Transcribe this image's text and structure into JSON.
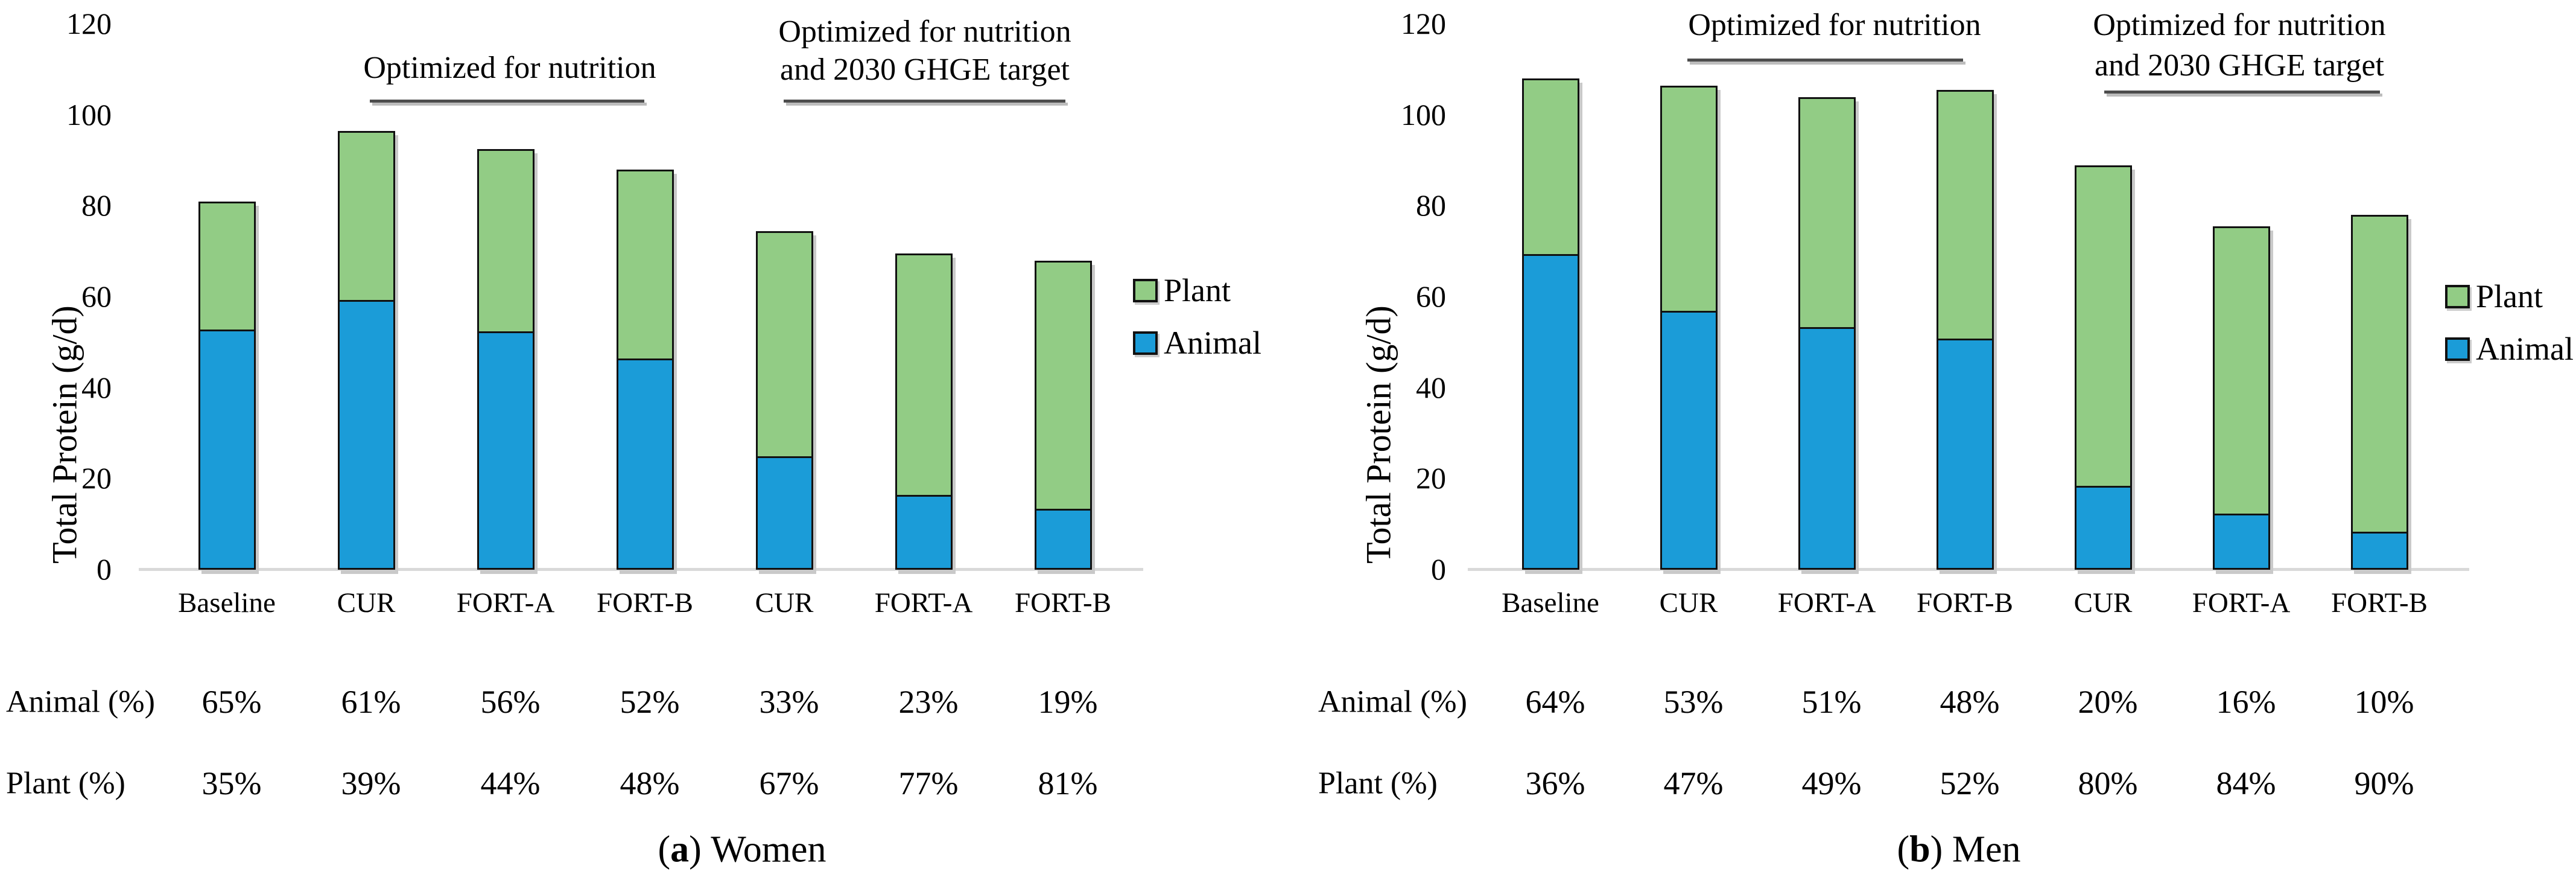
{
  "y_axis": {
    "label": "Total Protein (g/d)",
    "ticks": [
      0,
      20,
      40,
      60,
      80,
      100,
      120
    ],
    "max": 120
  },
  "legend": {
    "plant": "Plant",
    "animal": "Animal"
  },
  "annotations": {
    "nutrition": "Optimized for nutrition",
    "ghge_line1": "Optimized for nutrition",
    "ghge_line2": "and 2030 GHGE target"
  },
  "table": {
    "animal_label": "Animal (%)",
    "plant_label": "Plant (%)"
  },
  "colors": {
    "animal": "#1B9CD8",
    "plant": "#92CC85",
    "bar_border": "#111111",
    "axis_line": "#D9D9D9",
    "annotation_underline": "#4D4D4D"
  },
  "chart_data": [
    {
      "type": "bar",
      "stacked": true,
      "caption": {
        "pre": "(",
        "letter": "a",
        "post": ")",
        "word": "Women"
      },
      "ylabel": "Total Protein (g/d)",
      "ylim": [
        0,
        120
      ],
      "categories": [
        "Baseline",
        "CUR",
        "FORT-A",
        "FORT-B",
        "CUR",
        "FORT-A",
        "FORT-B"
      ],
      "series": [
        {
          "name": "Animal",
          "values": [
            52.5,
            59,
            52,
            46,
            24.5,
            16,
            13
          ]
        },
        {
          "name": "Plant",
          "values": [
            28.5,
            37.5,
            40.5,
            42,
            50,
            53.5,
            55
          ]
        }
      ],
      "totals": [
        81,
        96.5,
        92.5,
        88,
        74.5,
        69.5,
        68
      ],
      "animal_pct": [
        "65%",
        "61%",
        "56%",
        "52%",
        "33%",
        "23%",
        "19%"
      ],
      "plant_pct": [
        "35%",
        "39%",
        "44%",
        "48%",
        "67%",
        "77%",
        "81%"
      ],
      "group_annotations": [
        {
          "text": "Optimized for nutrition",
          "bars": "CUR, FORT-A, FORT-B"
        },
        {
          "text": "Optimized for nutrition and 2030 GHGE target",
          "bars": "CUR, FORT-A, FORT-B"
        }
      ]
    },
    {
      "type": "bar",
      "stacked": true,
      "caption": {
        "pre": "(",
        "letter": "b",
        "post": ")",
        "word": "Men"
      },
      "ylabel": "Total Protein (g/d)",
      "ylim": [
        0,
        120
      ],
      "categories": [
        "Baseline",
        "CUR",
        "FORT-A",
        "FORT-B",
        "CUR",
        "FORT-A",
        "FORT-B"
      ],
      "series": [
        {
          "name": "Animal",
          "values": [
            69,
            56.5,
            53,
            50.5,
            18,
            12,
            8
          ]
        },
        {
          "name": "Plant",
          "values": [
            39,
            50,
            51,
            55,
            71,
            63.5,
            70
          ]
        }
      ],
      "totals": [
        108,
        106.5,
        104,
        105.5,
        89,
        75.5,
        78
      ],
      "animal_pct": [
        "64%",
        "53%",
        "51%",
        "48%",
        "20%",
        "16%",
        "10%"
      ],
      "plant_pct": [
        "36%",
        "47%",
        "49%",
        "52%",
        "80%",
        "84%",
        "90%"
      ],
      "group_annotations": [
        {
          "text": "Optimized for nutrition",
          "bars": "CUR, FORT-A, FORT-B"
        },
        {
          "text": "Optimized for nutrition and 2030 GHGE target",
          "bars": "CUR, FORT-A, FORT-B"
        }
      ]
    }
  ]
}
